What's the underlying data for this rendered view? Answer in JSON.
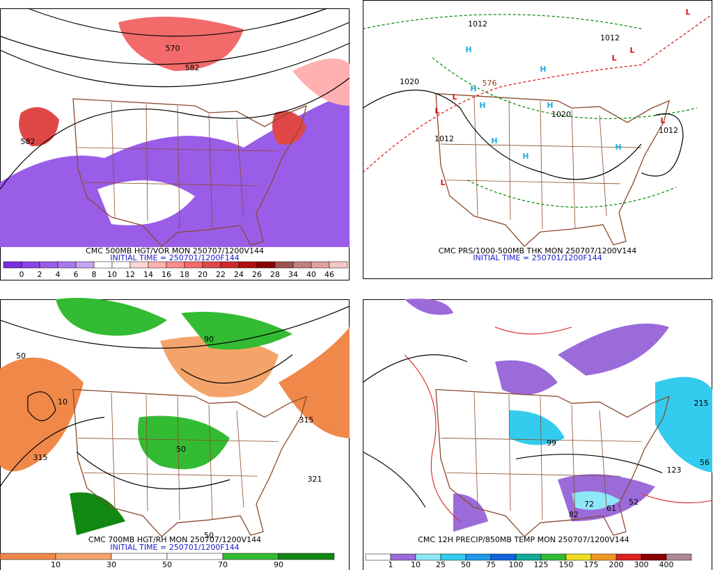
{
  "panels": [
    {
      "title": "CMC 500MB HGT/VOR MON 250707/1200V144",
      "subtitle": "INITIAL TIME = 250701/1200F144",
      "colorbar": {
        "labels": [
          0,
          2,
          4,
          6,
          8,
          10,
          12,
          14,
          16,
          18,
          20,
          22,
          24,
          26,
          28,
          34,
          40,
          46
        ],
        "colors": [
          "#7b2fe0",
          "#8a45e4",
          "#9a5de8",
          "#a877ec",
          "#c4a4f2",
          "#ffffff",
          "#ffffff",
          "#ffd6d6",
          "#ffb0b0",
          "#ff8c8c",
          "#f26a6a",
          "#e04848",
          "#cc2a2a",
          "#b01010",
          "#8a0000",
          "#a05050",
          "#c08080",
          "#e0a0a0",
          "#f4c8c8"
        ]
      },
      "labels": [
        {
          "text": "570",
          "color": "#000000"
        },
        {
          "text": "582",
          "color": "#000000"
        },
        {
          "text": "582",
          "color": "#000000"
        }
      ]
    },
    {
      "title": "CMC PRS/1000-500MB THK MON 250707/1200V144",
      "subtitle": "INITIAL TIME = 250701/1200F144",
      "labels": [
        {
          "text": "H",
          "color": "#22aadd"
        },
        {
          "text": "H",
          "color": "#22aadd"
        },
        {
          "text": "H",
          "color": "#22aadd"
        },
        {
          "text": "H",
          "color": "#22aadd"
        },
        {
          "text": "H",
          "color": "#22aadd"
        },
        {
          "text": "H",
          "color": "#22aadd"
        },
        {
          "text": "H",
          "color": "#22aadd"
        },
        {
          "text": "H",
          "color": "#22aadd"
        },
        {
          "text": "L",
          "color": "#dd1111"
        },
        {
          "text": "L",
          "color": "#dd1111"
        },
        {
          "text": "L",
          "color": "#dd1111"
        },
        {
          "text": "L",
          "color": "#dd1111"
        },
        {
          "text": "L",
          "color": "#dd1111"
        },
        {
          "text": "L",
          "color": "#dd1111"
        },
        {
          "text": "L",
          "color": "#dd1111"
        },
        {
          "text": "1012",
          "color": "#000000"
        },
        {
          "text": "1012",
          "color": "#000000"
        },
        {
          "text": "1020",
          "color": "#000000"
        },
        {
          "text": "1020",
          "color": "#000000"
        },
        {
          "text": "1012",
          "color": "#000000"
        },
        {
          "text": "1012",
          "color": "#000000"
        },
        {
          "text": "576",
          "color": "#8b3a1a"
        }
      ]
    },
    {
      "title": "CMC 700MB HGT/RH MON 250707/1200V144",
      "subtitle": "INITIAL TIME = 250701/1200F144",
      "colorbar": {
        "labels": [
          10,
          30,
          50,
          70,
          90
        ],
        "colors": [
          "#f0884a",
          "#f4a46a",
          "#ffffff",
          "#ffffff",
          "#33bb33",
          "#118811"
        ]
      },
      "labels": [
        {
          "text": "315",
          "color": "#000000"
        },
        {
          "text": "321",
          "color": "#000000"
        },
        {
          "text": "315",
          "color": "#000000"
        },
        {
          "text": "50",
          "color": "#000000"
        },
        {
          "text": "50",
          "color": "#000000"
        },
        {
          "text": "50",
          "color": "#000000"
        },
        {
          "text": "10",
          "color": "#000000"
        },
        {
          "text": "90",
          "color": "#000000"
        }
      ]
    },
    {
      "title": "CMC 12H PRECIP/850MB TEMP MON 250707/1200V144",
      "colorbar": {
        "labels": [
          1,
          10,
          25,
          50,
          75,
          100,
          125,
          150,
          175,
          200,
          300,
          400
        ],
        "colors": [
          "#ffffff",
          "#9b6bd9",
          "#8fe8f8",
          "#33ccee",
          "#2299ee",
          "#1166dd",
          "#11aa99",
          "#33bb33",
          "#eedd22",
          "#f09922",
          "#dd2222",
          "#880000",
          "#b08898"
        ]
      },
      "labels": [
        {
          "text": "123",
          "color": "#000000"
        },
        {
          "text": "99",
          "color": "#000000"
        },
        {
          "text": "82",
          "color": "#000000"
        },
        {
          "text": "72",
          "color": "#000000"
        },
        {
          "text": "61",
          "color": "#000000"
        },
        {
          "text": "52",
          "color": "#000000"
        },
        {
          "text": "56",
          "color": "#000000"
        },
        {
          "text": "215",
          "color": "#000000"
        }
      ]
    }
  ]
}
